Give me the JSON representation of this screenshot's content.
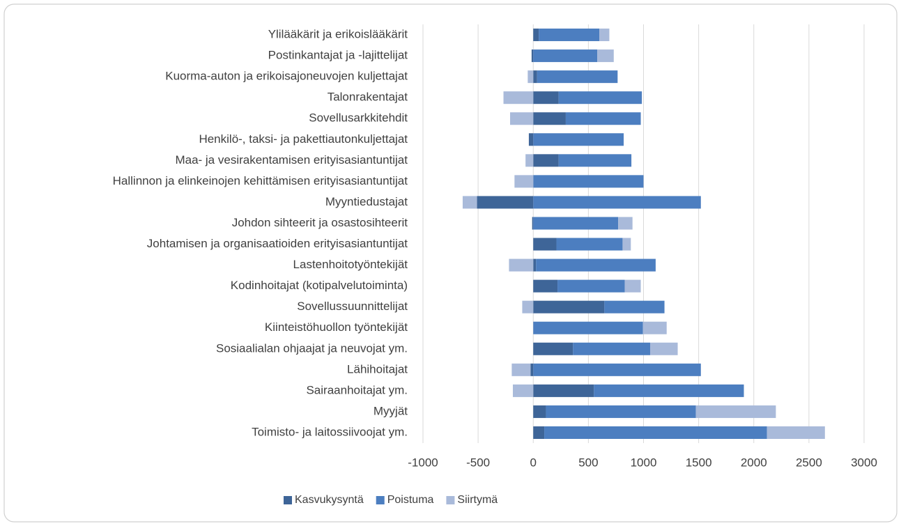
{
  "chart_data": {
    "type": "stacked_barh",
    "categories": [
      "Ylilääkärit ja erikoislääkärit",
      "Postinkantajat ja -lajittelijat",
      "Kuorma-auton ja erikoisajoneuvojen kuljettajat",
      "Talonrakentajat",
      "Sovellusarkkitehdit",
      "Henkilö-, taksi- ja pakettiautonkuljettajat",
      "Maa- ja vesirakentamisen erityisasiantuntijat",
      "Hallinnon ja elinkeinojen kehittämisen erityisasiantuntijat",
      "Myyntiedustajat",
      "Johdon sihteerit ja osastosihteerit",
      "Johtamisen ja organisaatioiden erityisasiantuntijat",
      "Lastenhoitotyöntekijät",
      "Kodinhoitajat (kotipalvelutoiminta)",
      "Sovellussuunnittelijat",
      "Kiinteistöhuollon työntekijät",
      "Sosiaalialan ohjaajat ja neuvojat ym.",
      "Lähihoitajat",
      "Sairaanhoitajat ym.",
      "Myyjät",
      "Toimisto- ja laitossiivoojat ym."
    ],
    "series": [
      {
        "name": "Kasvukysyntä",
        "color": "#3e6598",
        "values": [
          50,
          -15,
          35,
          230,
          295,
          -40,
          230,
          0,
          -510,
          -10,
          210,
          25,
          220,
          645,
          0,
          360,
          -25,
          550,
          115,
          100
        ]
      },
      {
        "name": "Poistuma",
        "color": "#4c7ec0",
        "values": [
          550,
          580,
          730,
          755,
          680,
          820,
          660,
          1000,
          1520,
          770,
          600,
          1085,
          610,
          545,
          995,
          700,
          1520,
          1360,
          1360,
          2020
        ]
      },
      {
        "name": "Siirtymä",
        "color": "#a9bada",
        "values": [
          90,
          150,
          -50,
          -270,
          -210,
          0,
          -70,
          -170,
          -130,
          130,
          75,
          -220,
          145,
          -100,
          215,
          250,
          -170,
          -185,
          725,
          525
        ]
      }
    ],
    "xlim": [
      -1000,
      3000
    ],
    "xticks": [
      -1000,
      -500,
      0,
      500,
      1000,
      1500,
      2000,
      2500,
      3000
    ],
    "grid": true,
    "legend": "bottom"
  }
}
